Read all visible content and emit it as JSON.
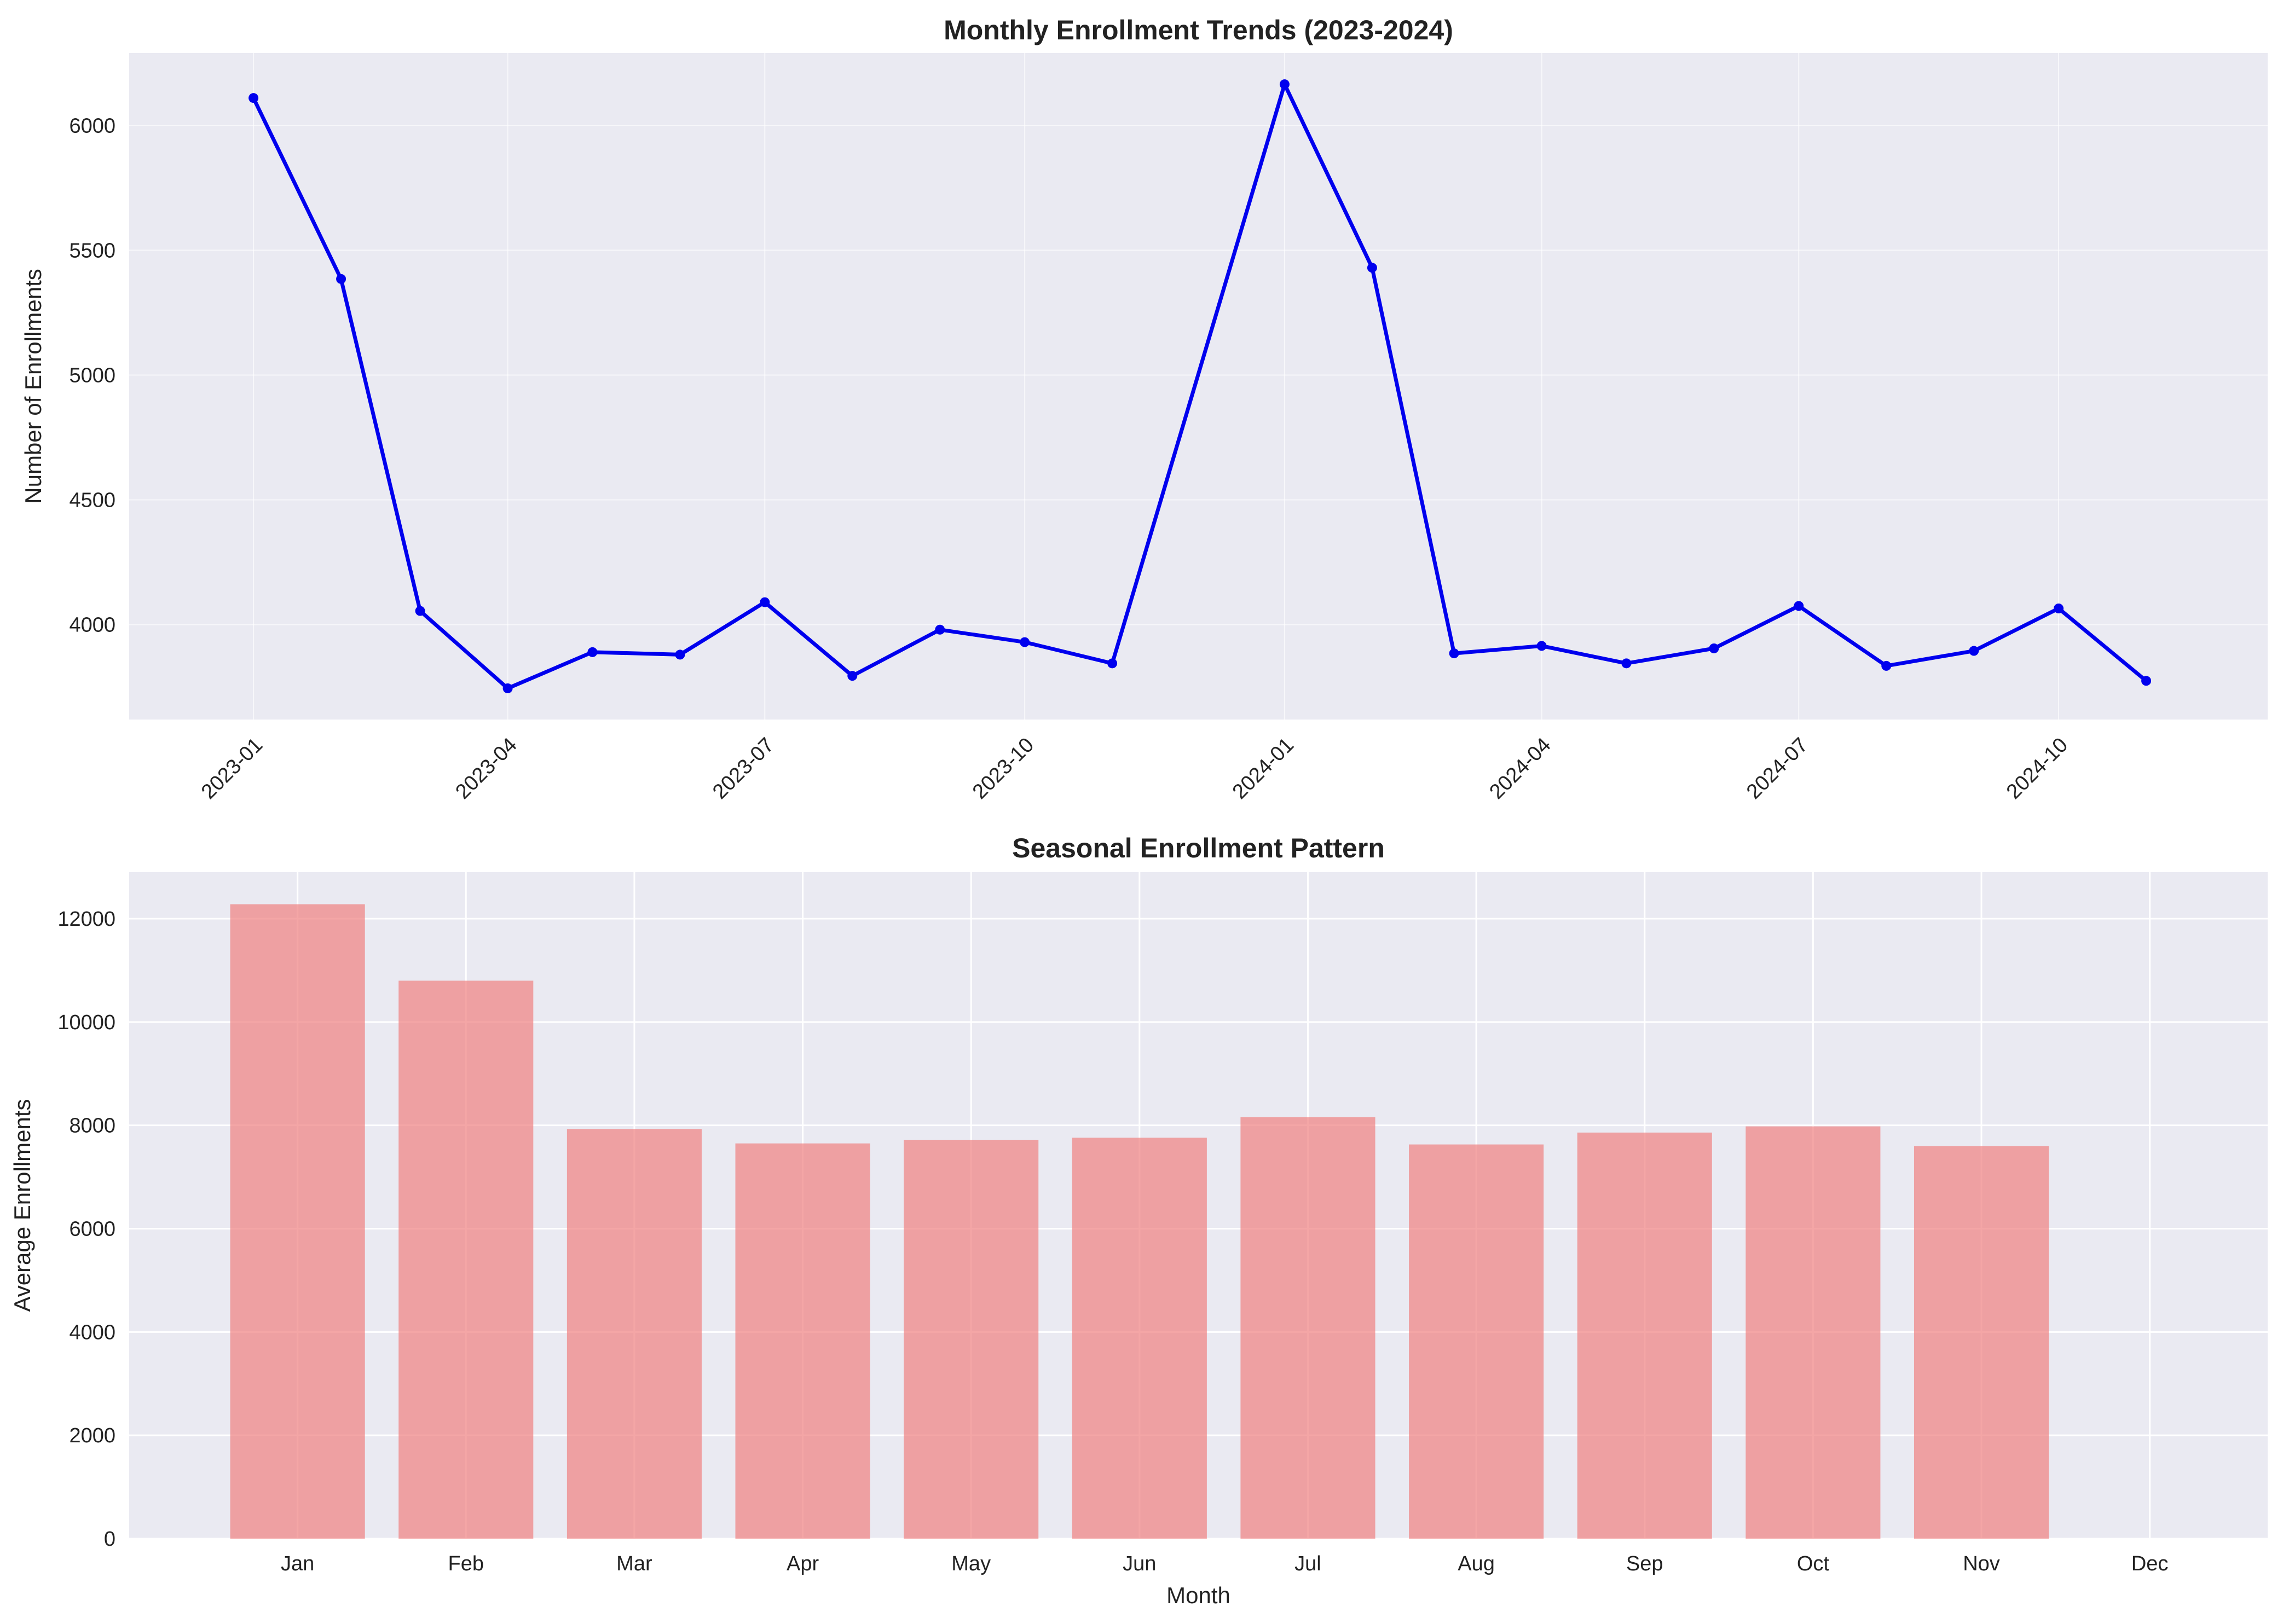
{
  "colors": {
    "figure_background": "#ffffff",
    "axes_background": "#eaeaf2",
    "grid": "#ffffff",
    "line": "#0000ee",
    "bar": "#f08080"
  },
  "chart_data": [
    {
      "type": "line",
      "title": "Monthly Enrollment Trends (2023-2024)",
      "xlabel": "",
      "ylabel": "Number of Enrollments",
      "grid": true,
      "x": [
        "2023-01",
        "2023-02",
        "2023-03",
        "2023-04",
        "2023-05",
        "2023-06",
        "2023-07",
        "2023-08",
        "2023-09",
        "2023-10",
        "2023-11",
        "2024-01",
        "2024-02",
        "2024-03",
        "2024-04",
        "2024-05",
        "2024-06",
        "2024-07",
        "2024-08",
        "2024-09",
        "2024-10",
        "2024-11"
      ],
      "series": [
        {
          "values": [
            6110,
            5385,
            4055,
            3745,
            3890,
            3880,
            4090,
            3795,
            3980,
            3930,
            3845,
            6165,
            5430,
            3885,
            3915,
            3845,
            3905,
            4075,
            3835,
            3895,
            4065,
            3775
          ]
        }
      ],
      "xticks": [
        "2023-01",
        "2023-04",
        "2023-07",
        "2023-10",
        "2024-01",
        "2024-04",
        "2024-07",
        "2024-10"
      ],
      "xlim": [
        "2022-11-18",
        "2024-12-14"
      ],
      "yticks": [
        4000,
        4500,
        5000,
        5500,
        6000
      ],
      "ylim": [
        3620,
        6290
      ]
    },
    {
      "type": "bar",
      "title": "Seasonal Enrollment Pattern",
      "xlabel": "Month",
      "ylabel": "Average Enrollments",
      "grid": true,
      "categories": [
        "Jan",
        "Feb",
        "Mar",
        "Apr",
        "May",
        "Jun",
        "Jul",
        "Aug",
        "Sep",
        "Oct",
        "Nov",
        "Dec"
      ],
      "values": [
        12280,
        10800,
        7930,
        7650,
        7720,
        7760,
        8160,
        7630,
        7860,
        7980,
        7600,
        0
      ],
      "yticks": [
        0,
        2000,
        4000,
        6000,
        8000,
        10000,
        12000
      ],
      "ylim": [
        0,
        12900
      ]
    }
  ]
}
